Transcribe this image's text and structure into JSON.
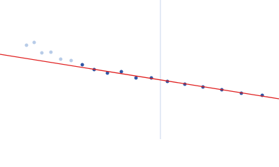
{
  "chart_data": {
    "type": "scatter",
    "xlim": [
      0,
      400
    ],
    "ylim": [
      0,
      200
    ],
    "series": [
      {
        "color": "#b8cce8",
        "x": [
          38,
          49,
          60,
          73,
          87,
          102
        ],
        "values": [
          135,
          139,
          124,
          125,
          115,
          113
        ]
      },
      {
        "color": "#2f55a4",
        "x": [
          118,
          135,
          154,
          174,
          195,
          217,
          240,
          265,
          291,
          318,
          346,
          376
        ],
        "values": [
          107,
          100,
          95,
          97,
          88,
          88,
          83,
          79,
          75,
          71,
          66,
          63
        ]
      }
    ],
    "fit": {
      "color": "#e02020",
      "x": [
        0,
        400
      ],
      "values": [
        122,
        58
      ]
    },
    "vline": {
      "color": "#c8d4ec",
      "x": 230
    }
  }
}
